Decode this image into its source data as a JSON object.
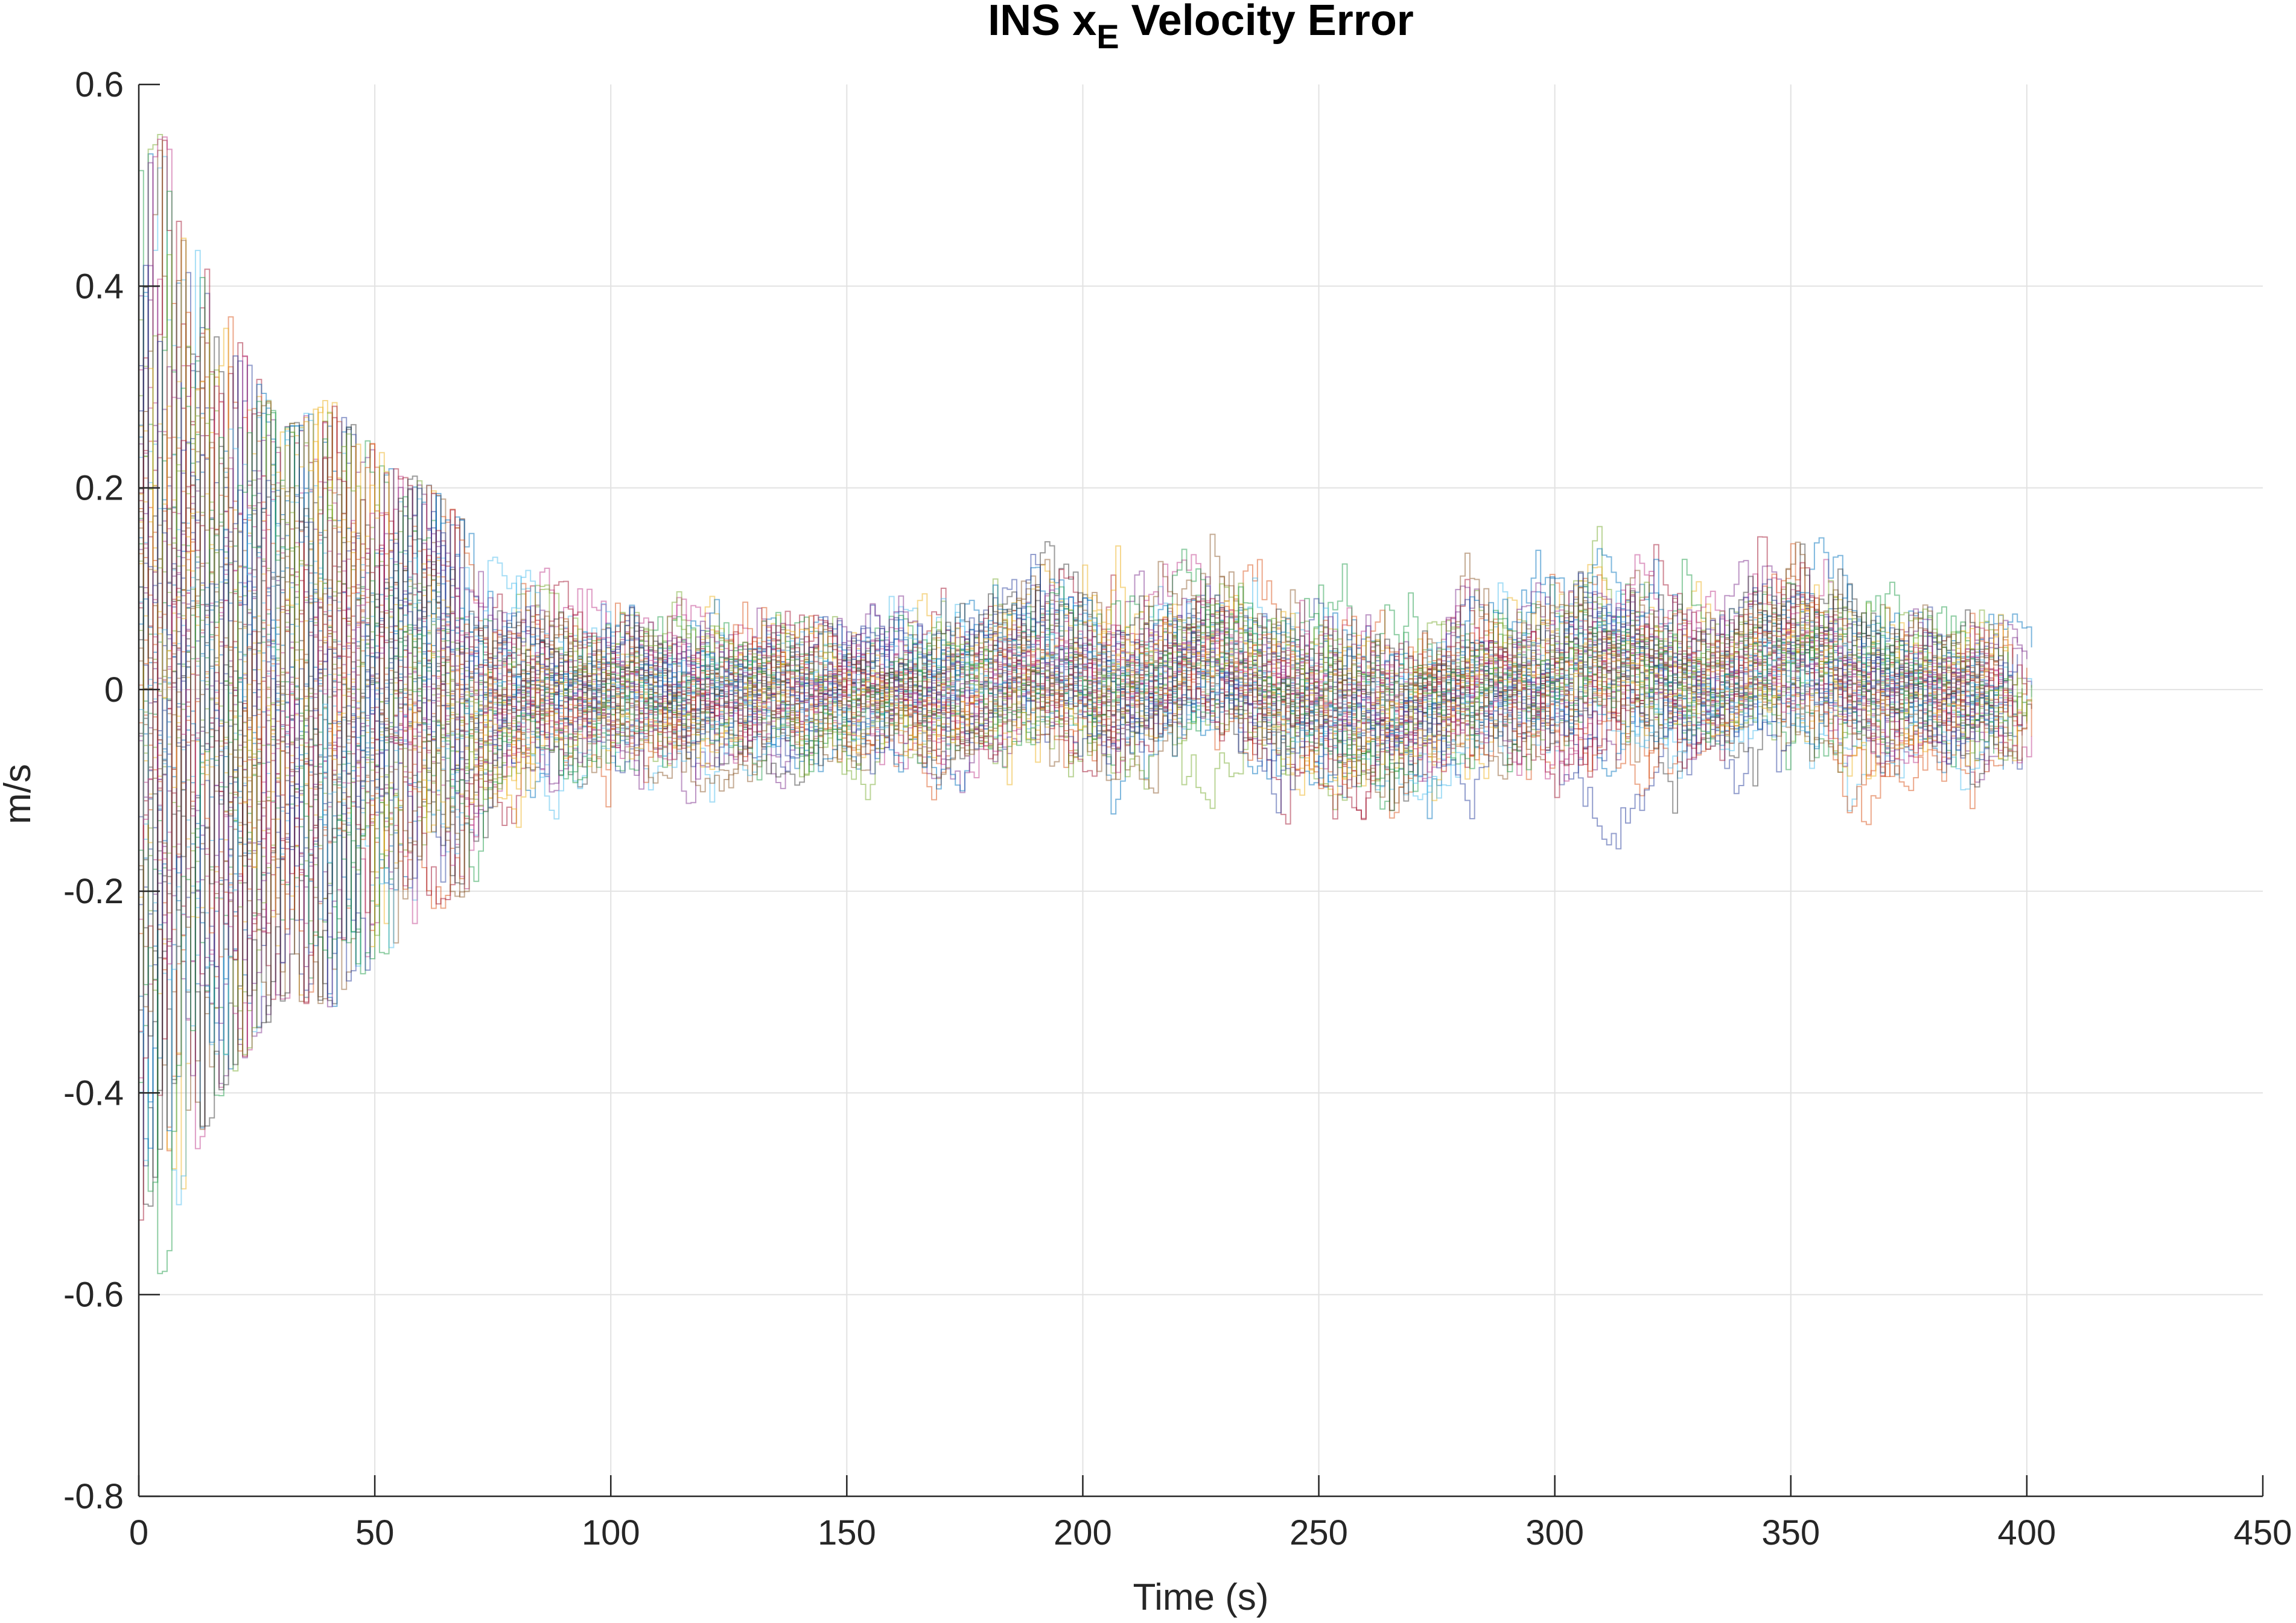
{
  "chart_data": {
    "type": "line",
    "title": "INS x",
    "title_subscript": "E",
    "title_suffix": " Velocity Error",
    "xlabel": "Time (s)",
    "ylabel": "m/s",
    "xlim": [
      0,
      450
    ],
    "ylim": [
      -0.8,
      0.6
    ],
    "xticks": [
      0,
      50,
      100,
      150,
      200,
      250,
      300,
      350,
      400,
      450
    ],
    "xtick_labels": [
      "0",
      "50",
      "100",
      "150",
      "200",
      "250",
      "300",
      "350",
      "400",
      "450"
    ],
    "yticks": [
      -0.8,
      -0.6,
      -0.4,
      -0.2,
      0,
      0.2,
      0.4,
      0.6
    ],
    "ytick_labels": [
      "-0.8",
      "-0.6",
      "-0.4",
      "-0.2",
      "0",
      "0.2",
      "0.4",
      "0.6"
    ],
    "grid": true,
    "legend": "none",
    "series_style": "many overlapping thin semi-transparent staircase traces (Monte Carlo runs) ending near t = 392–402 s",
    "envelope": {
      "x": [
        0,
        5,
        10,
        20,
        30,
        40,
        50,
        60,
        70,
        80,
        100,
        125,
        150,
        175,
        200,
        225,
        250,
        275,
        300,
        325,
        350,
        375,
        392,
        402
      ],
      "upper": [
        0.53,
        0.56,
        0.47,
        0.36,
        0.26,
        0.29,
        0.24,
        0.21,
        0.16,
        0.13,
        0.11,
        0.09,
        0.07,
        0.18,
        0.18,
        0.21,
        0.15,
        0.14,
        0.19,
        0.17,
        0.2,
        0.09,
        0.08,
        0.07
      ],
      "lower": [
        -0.64,
        -0.59,
        -0.48,
        -0.38,
        -0.31,
        -0.32,
        -0.27,
        -0.23,
        -0.2,
        -0.15,
        -0.15,
        -0.11,
        -0.11,
        -0.12,
        -0.14,
        -0.22,
        -0.21,
        -0.18,
        -0.17,
        -0.16,
        -0.15,
        -0.14,
        -0.12,
        -0.1
      ]
    },
    "typical_band": {
      "x": [
        0,
        20,
        50,
        75,
        100,
        150,
        200,
        250,
        300,
        350,
        400
      ],
      "sigma": [
        0.2,
        0.14,
        0.09,
        0.055,
        0.045,
        0.035,
        0.045,
        0.045,
        0.045,
        0.045,
        0.04
      ]
    },
    "colors": [
      "#0072BD",
      "#D95319",
      "#77AC30",
      "#7E2F8E",
      "#4DBEEE",
      "#A2142F",
      "#EDB120",
      "#3A3A3A",
      "#C03C8C",
      "#1F9E4A",
      "#2A3F9E",
      "#8C5A2B"
    ]
  }
}
